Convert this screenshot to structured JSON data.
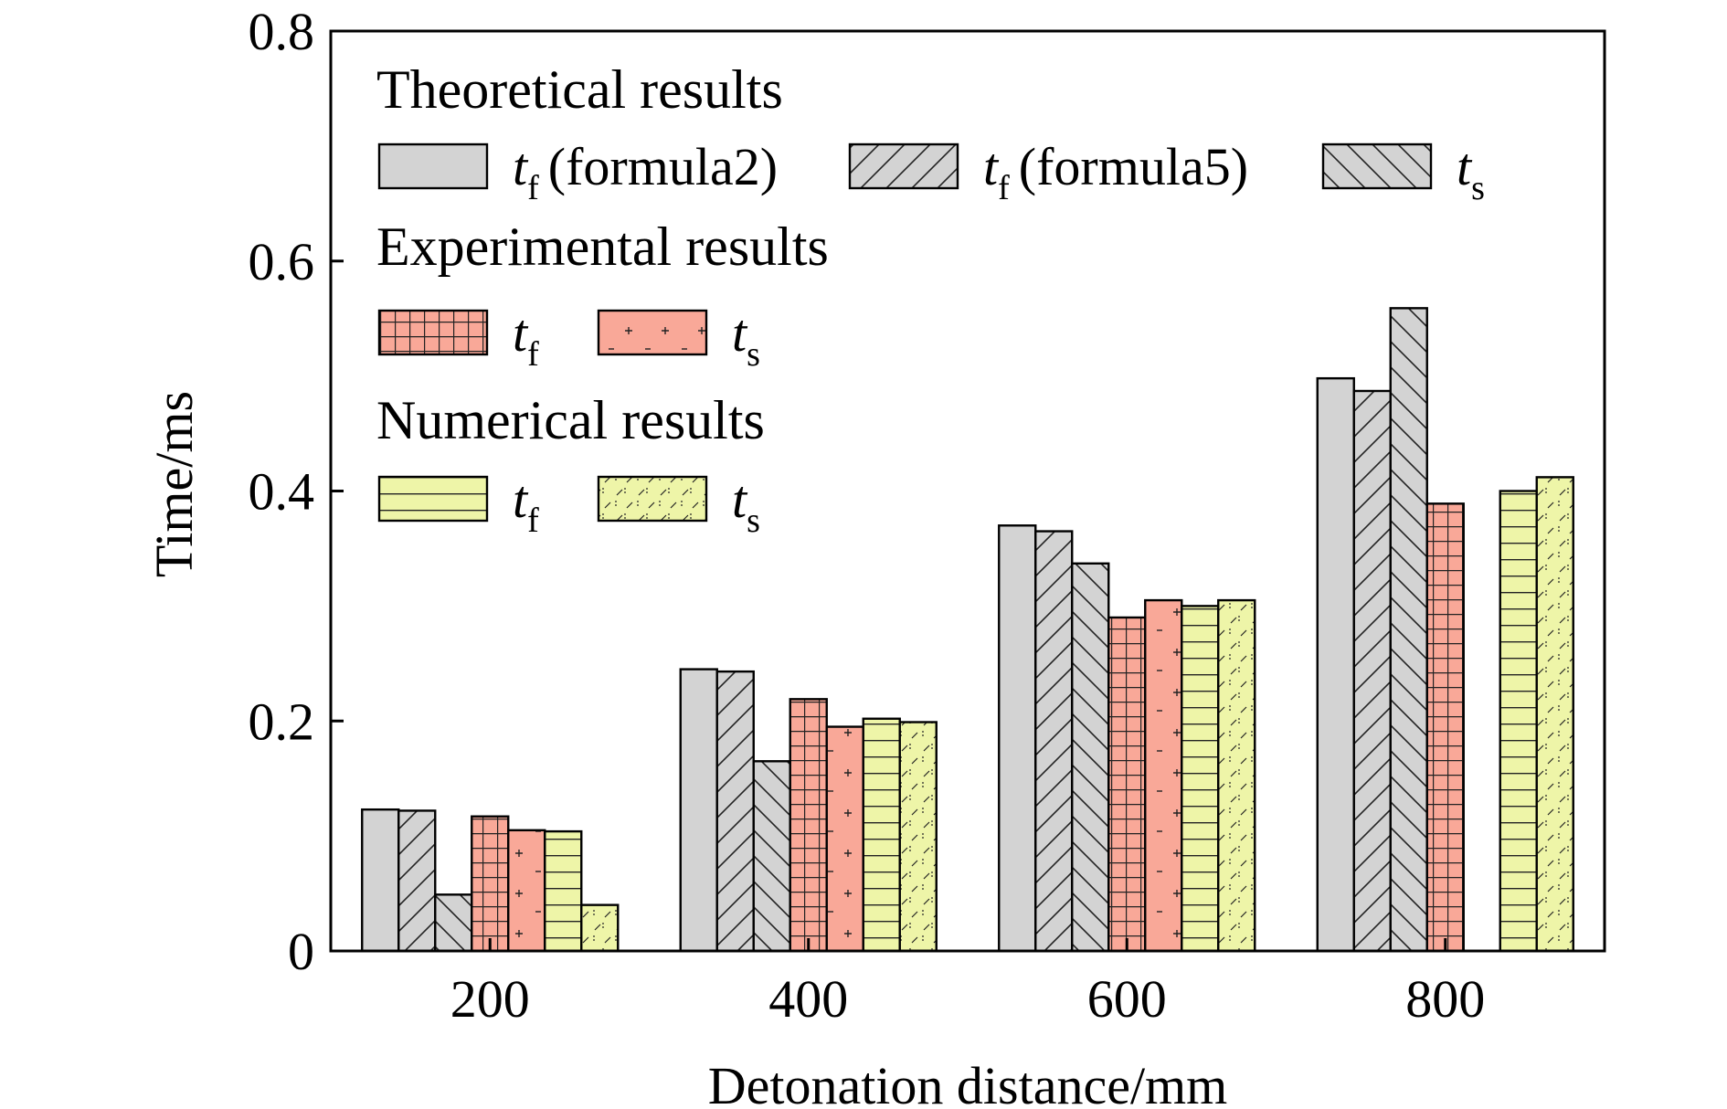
{
  "chart_data": {
    "type": "bar",
    "title": "",
    "xlabel": "Detonation distance/mm",
    "ylabel": "Time/ms",
    "categories": [
      "200",
      "400",
      "600",
      "800"
    ],
    "ylim": [
      0,
      0.8
    ],
    "yticks": [
      "0",
      "0.2",
      "0.4",
      "0.6",
      "0.8"
    ],
    "grid": false,
    "legend_position": "top-left",
    "legend_groups": [
      {
        "heading": "Theoretical results",
        "items": [
          {
            "series_index": 0,
            "label_main": "t",
            "label_sub": "f",
            "label_suffix": "(formula2)"
          },
          {
            "series_index": 1,
            "label_main": "t",
            "label_sub": "f",
            "label_suffix": "(formula5)"
          },
          {
            "series_index": 2,
            "label_main": "t",
            "label_sub": "s",
            "label_suffix": ""
          }
        ]
      },
      {
        "heading": "Experimental results",
        "items": [
          {
            "series_index": 3,
            "label_main": "t",
            "label_sub": "f",
            "label_suffix": ""
          },
          {
            "series_index": 4,
            "label_main": "t",
            "label_sub": "s",
            "label_suffix": ""
          }
        ]
      },
      {
        "heading": "Numerical results",
        "items": [
          {
            "series_index": 5,
            "label_main": "t",
            "label_sub": "f",
            "label_suffix": ""
          },
          {
            "series_index": 6,
            "label_main": "t",
            "label_sub": "s",
            "label_suffix": ""
          }
        ]
      }
    ],
    "series": [
      {
        "group": "Theoretical results",
        "color": "#d3d3d3",
        "pattern": "none",
        "values": [
          0.123,
          0.245,
          0.37,
          0.498
        ]
      },
      {
        "group": "Theoretical results",
        "color": "#d3d3d3",
        "pattern": "diag-right",
        "values": [
          0.122,
          0.243,
          0.365,
          0.487
        ]
      },
      {
        "group": "Theoretical results",
        "color": "#d3d3d3",
        "pattern": "diag-left",
        "values": [
          0.049,
          0.165,
          0.337,
          0.559
        ]
      },
      {
        "group": "Experimental results",
        "color": "#f9a898",
        "pattern": "grid",
        "values": [
          0.117,
          0.219,
          0.29,
          0.389
        ]
      },
      {
        "group": "Experimental results",
        "color": "#f9a898",
        "pattern": "dots",
        "values": [
          0.105,
          0.195,
          0.305,
          null
        ]
      },
      {
        "group": "Numerical results",
        "color": "#eef5a8",
        "pattern": "horizontal",
        "values": [
          0.104,
          0.202,
          0.3,
          0.4
        ]
      },
      {
        "group": "Numerical results",
        "color": "#eef5a8",
        "pattern": "brick",
        "values": [
          0.04,
          0.199,
          0.305,
          0.412
        ]
      }
    ]
  }
}
